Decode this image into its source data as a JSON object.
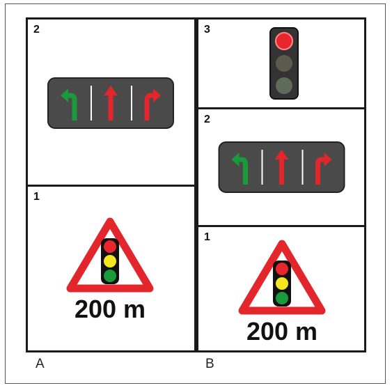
{
  "columns": [
    {
      "label": "A",
      "panels": [
        {
          "number": "2",
          "sign": "lane-arrows"
        },
        {
          "number": "1",
          "sign": "traffic-light-warning",
          "distance": "200 m"
        }
      ]
    },
    {
      "label": "B",
      "panels": [
        {
          "number": "3",
          "sign": "traffic-light-red"
        },
        {
          "number": "2",
          "sign": "lane-arrows"
        },
        {
          "number": "1",
          "sign": "traffic-light-warning",
          "distance": "200 m"
        }
      ]
    }
  ],
  "colors": {
    "warning_red": "#e2262b",
    "arrow_green": "#1a9a3a",
    "arrow_red": "#e2262b",
    "sign_background": "#4a4a4a",
    "light_red": "#e8262b",
    "light_yellow": "#f5e71d",
    "light_green": "#1a9a3a",
    "light_off": "#5e6a5a"
  }
}
